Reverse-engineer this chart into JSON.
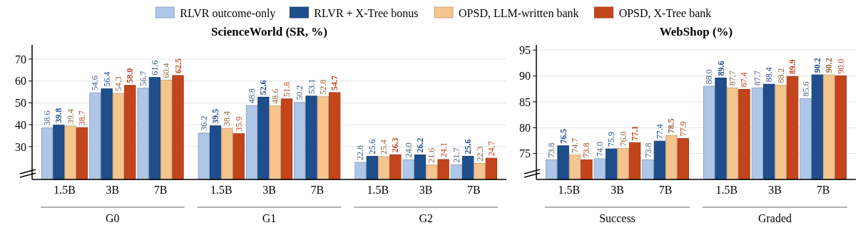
{
  "chart_data": [
    {
      "type": "bar",
      "title": "ScienceWorld (SR, %)",
      "categories": [
        "1.5B",
        "3B",
        "7B",
        "1.5B",
        "3B",
        "7B",
        "1.5B",
        "3B",
        "7B"
      ],
      "annotations": [
        "G0",
        "G1",
        "G2"
      ],
      "series": [
        {
          "name": "RLVR outcome-only",
          "color": "#aec7e8",
          "values": [
            38.6,
            54.6,
            56.7,
            36.2,
            48.8,
            50.2,
            22.8,
            24.0,
            21.7
          ],
          "value_labels": [
            "38.6",
            "54.6",
            "56.7",
            "36.2",
            "48.8",
            "50.2",
            "22.8",
            "24.0",
            "21.7"
          ]
        },
        {
          "name": "RLVR + X-Tree bonus",
          "color": "#1f4e8c",
          "values": [
            39.8,
            56.4,
            61.6,
            39.5,
            52.6,
            53.1,
            25.6,
            26.2,
            25.6
          ],
          "value_labels": [
            "39.8",
            "56.4",
            "61.6",
            "39.5",
            "52.6",
            "53.1",
            "25.6",
            "26.2",
            "25.6"
          ]
        },
        {
          "name": "OPSD, LLM-written bank",
          "color": "#f5c58e",
          "values": [
            39.4,
            54.3,
            60.4,
            38.4,
            48.6,
            52.8,
            25.4,
            21.6,
            22.3
          ],
          "value_labels": [
            "39.4",
            "54.3",
            "60.4",
            "38.4",
            "48.6",
            "52.8",
            "25.4",
            "21.6",
            "22.3"
          ]
        },
        {
          "name": "OPSD, X-Tree bank",
          "color": "#c4451c",
          "values": [
            38.7,
            58.0,
            62.5,
            35.9,
            51.8,
            54.7,
            26.3,
            24.1,
            24.7
          ],
          "value_labels": [
            "38.7",
            "58.0",
            "62.5",
            "35.9",
            "51.8",
            "54.7",
            "26.3",
            "24.1",
            "24.7"
          ]
        }
      ],
      "ylim": [
        15,
        76.5
      ],
      "yticks": [
        30,
        40,
        50,
        60,
        70
      ],
      "grid": "y",
      "legend": "top"
    },
    {
      "type": "bar",
      "title": "WebShop (%)",
      "categories": [
        "1.5B",
        "3B",
        "7B",
        "1.5B",
        "3B",
        "7B"
      ],
      "annotations": [
        "Success",
        "Graded"
      ],
      "series": [
        {
          "color": "#aec7e8",
          "values": [
            73.8,
            74.0,
            73.8,
            88.0,
            87.7,
            85.6
          ],
          "value_labels": [
            "73.8",
            "74.0",
            "73.8",
            "88.0",
            "87.7",
            "85.6"
          ]
        },
        {
          "color": "#1f4e8c",
          "values": [
            76.5,
            75.9,
            77.4,
            89.6,
            88.4,
            90.2
          ],
          "value_labels": [
            "76.5",
            "75.9",
            "77.4",
            "89.6",
            "88.4",
            "90.2"
          ]
        },
        {
          "color": "#f5c58e",
          "values": [
            74.7,
            76.0,
            78.5,
            87.7,
            88.2,
            90.2
          ],
          "value_labels": [
            "74.7",
            "76.0",
            "78.5",
            "87.7",
            "88.2",
            "90.2"
          ]
        },
        {
          "color": "#c4451c",
          "values": [
            73.8,
            77.1,
            77.9,
            87.4,
            89.9,
            90.0
          ],
          "value_labels": [
            "73.8",
            "77.1",
            "77.9",
            "87.4",
            "89.9",
            "90.0"
          ]
        }
      ],
      "ylim": [
        70,
        96
      ],
      "yticks": [
        75,
        80,
        85,
        90,
        95
      ],
      "grid": "y"
    }
  ]
}
